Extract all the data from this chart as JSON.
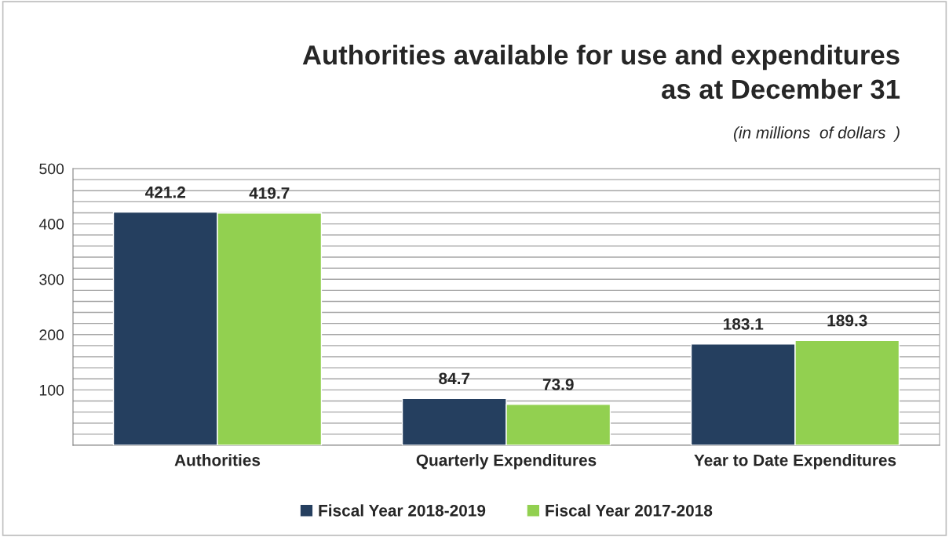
{
  "chart_data": {
    "type": "bar",
    "title": "Authorities available for use and expenditures\nas at December 31",
    "subtitle": "(in millions  of dollars  )",
    "categories": [
      "Authorities",
      "Quarterly Expenditures",
      "Year to Date Expenditures"
    ],
    "series": [
      {
        "name": "Fiscal Year 2018-2019",
        "color": "#253f5f",
        "values": [
          421.2,
          84.7,
          183.1
        ]
      },
      {
        "name": "Fiscal Year 2017-2018",
        "color": "#92d050",
        "values": [
          419.7,
          73.9,
          189.3
        ]
      }
    ],
    "ylim": [
      0,
      500
    ],
    "yticks": [
      {
        "value": 0,
        "label": null
      },
      {
        "value": 20,
        "label": null
      },
      {
        "value": 40,
        "label": null
      },
      {
        "value": 60,
        "label": null
      },
      {
        "value": 80,
        "label": null
      },
      100,
      {
        "value": 120,
        "label": null
      },
      {
        "value": 140,
        "label": null
      },
      {
        "value": 160,
        "label": null
      },
      {
        "value": 180,
        "label": null
      },
      200,
      {
        "value": 220,
        "label": null
      },
      {
        "value": 240,
        "label": null
      },
      {
        "value": 260,
        "label": null
      },
      {
        "value": 280,
        "label": null
      },
      300,
      {
        "value": 320,
        "label": null
      },
      {
        "value": 340,
        "label": null
      },
      {
        "value": 360,
        "label": null
      },
      {
        "value": 380,
        "label": null
      },
      400,
      {
        "value": 420,
        "label": null
      },
      {
        "value": 440,
        "label": null
      },
      {
        "value": 460,
        "label": null
      },
      {
        "value": 480,
        "label": null
      },
      500
    ],
    "grid": "y",
    "legend": "bottom",
    "data_labels": true
  }
}
